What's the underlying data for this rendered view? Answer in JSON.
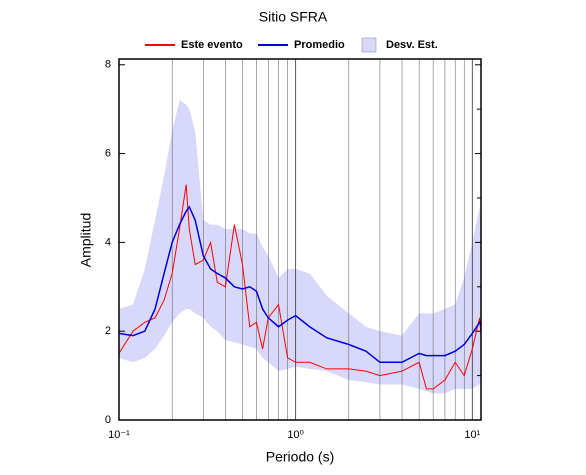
{
  "chart_data": {
    "type": "line",
    "title": "Sitio SFRA",
    "xlabel": "Periodo (s)",
    "ylabel": "Amplitud",
    "x": [
      0.1,
      0.12,
      0.14,
      0.16,
      0.18,
      0.2,
      0.22,
      0.24,
      0.25,
      0.27,
      0.3,
      0.33,
      0.36,
      0.4,
      0.45,
      0.5,
      0.55,
      0.6,
      0.65,
      0.7,
      0.8,
      0.9,
      1,
      1.2,
      1.5,
      2,
      2.5,
      3,
      4,
      5,
      5.5,
      6,
      7,
      8,
      9,
      10,
      11,
      11.2
    ],
    "series": [
      {
        "name": "Este evento",
        "color": "#ff0000",
        "values": [
          1.5,
          2.0,
          2.2,
          2.3,
          2.7,
          3.3,
          4.3,
          5.3,
          4.3,
          3.5,
          3.6,
          4.0,
          3.1,
          3.0,
          4.4,
          3.5,
          2.1,
          2.2,
          1.6,
          2.3,
          2.6,
          1.4,
          1.3,
          1.3,
          1.15,
          1.15,
          1.1,
          1.0,
          1.1,
          1.3,
          0.7,
          0.7,
          0.9,
          1.3,
          1.0,
          1.6,
          2.3,
          1.9
        ]
      },
      {
        "name": "Promedio",
        "color": "#0000dd",
        "values": [
          1.95,
          1.9,
          2.0,
          2.5,
          3.3,
          4.0,
          4.4,
          4.7,
          4.8,
          4.5,
          3.7,
          3.4,
          3.3,
          3.2,
          3.0,
          2.95,
          3.0,
          2.9,
          2.5,
          2.3,
          2.1,
          2.25,
          2.35,
          2.1,
          1.85,
          1.7,
          1.55,
          1.3,
          1.3,
          1.5,
          1.45,
          1.45,
          1.45,
          1.55,
          1.7,
          1.95,
          2.2,
          2.15
        ]
      },
      {
        "name": "Desv. Est.",
        "color": "#d8d8fa",
        "kind": "band",
        "upper": [
          2.5,
          2.6,
          3.4,
          4.5,
          5.5,
          6.5,
          7.2,
          7.1,
          7.0,
          6.5,
          4.5,
          4.4,
          4.4,
          4.3,
          4.3,
          4.3,
          4.2,
          4.2,
          3.9,
          3.7,
          3.2,
          3.4,
          3.4,
          3.3,
          2.8,
          2.4,
          2.1,
          2.0,
          1.9,
          2.4,
          2.4,
          2.4,
          2.5,
          2.6,
          3.2,
          4.0,
          4.8,
          4.5
        ],
        "lower": [
          1.4,
          1.3,
          1.4,
          1.6,
          1.9,
          2.2,
          2.4,
          2.5,
          2.5,
          2.4,
          2.3,
          2.1,
          2.0,
          1.8,
          1.75,
          1.7,
          1.65,
          1.6,
          1.4,
          1.3,
          1.1,
          1.15,
          1.2,
          1.15,
          1.1,
          0.9,
          0.85,
          0.8,
          0.8,
          0.7,
          0.65,
          0.6,
          0.6,
          0.7,
          0.7,
          0.7,
          0.8,
          0.9
        ]
      }
    ],
    "xlim": [
      0.1,
      11.2
    ],
    "xlog": true,
    "xgrid": true,
    "xticks": [
      {
        "value": 0.1,
        "label": "10⁻¹"
      },
      {
        "value": 1,
        "label": "10⁰"
      },
      {
        "value": 10,
        "label": "10¹"
      }
    ],
    "ylim": [
      0,
      8.13
    ],
    "yticks": [
      0,
      2,
      4,
      6,
      8
    ],
    "yminorticks": [
      1,
      3,
      5,
      7
    ],
    "legend": "top"
  }
}
